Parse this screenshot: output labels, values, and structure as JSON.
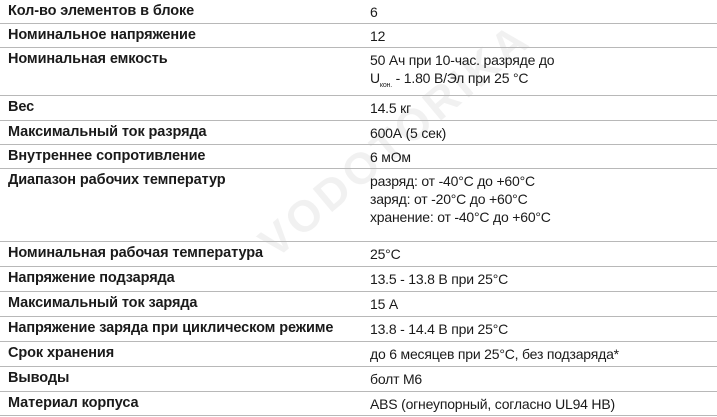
{
  "watermark": "VODOTORIKA",
  "rows": [
    {
      "label": "Кол-во элементов в блоке",
      "value": "6"
    },
    {
      "label": "Номинальное напряжение",
      "value": "12"
    },
    {
      "label": "Номинальная емкость",
      "value_line1": "50 Ач при 10-час. разряде до",
      "value_line2_prefix": "U",
      "value_line2_sub": "кон.",
      "value_line2_rest": " - 1.80 В/Эл при 25 °C"
    },
    {
      "label": "Вес",
      "value": "14.5 кг"
    },
    {
      "label": "Максимальный ток разряда",
      "value": "600А (5 сек)"
    },
    {
      "label": "Внутреннее сопротивление",
      "value": "6 мОм"
    },
    {
      "label": "Диапазон рабочих температур",
      "values": [
        "разряд: от -40°С до +60°С",
        "заряд: от -20°С до +60°С",
        "хранение: от -40°С до +60°С"
      ]
    },
    {
      "label": "Номинальная рабочая температура",
      "value": "25°С"
    },
    {
      "label": "Напряжение подзаряда",
      "value": "13.5 - 13.8 В при 25°С"
    },
    {
      "label": "Максимальный ток заряда",
      "value": "15 А"
    },
    {
      "label": "Напряжение заряда при циклическом режиме",
      "value": "13.8 - 14.4 В при 25°С"
    },
    {
      "label": "Срок хранения",
      "value": "до 6 месяцев при 25°С, без подзаряда*"
    },
    {
      "label": "Выводы",
      "value": "болт М6"
    },
    {
      "label": "Материал корпуса",
      "value": "ABS (огнеупорный, согласно UL94 HB)"
    }
  ]
}
